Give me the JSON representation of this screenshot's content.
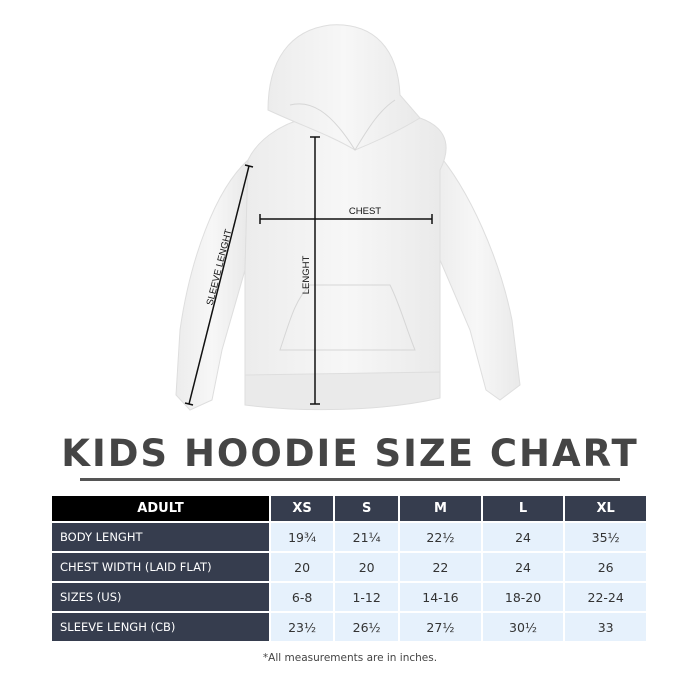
{
  "title": "KIDS HOODIE SIZE CHART",
  "diagram": {
    "sleeve_label": "SLEEVE LENGHT",
    "chest_label": "CHEST",
    "length_label": "LENGHT"
  },
  "table": {
    "corner": "ADULT",
    "sizes": [
      "XS",
      "S",
      "M",
      "L",
      "XL"
    ],
    "rows": [
      {
        "label": "BODY LENGHT",
        "values": [
          "19¾",
          "21¼",
          "22½",
          "24",
          "35½"
        ]
      },
      {
        "label": "CHEST WIDTH (LAID FLAT)",
        "values": [
          "20",
          "20",
          "22",
          "24",
          "26"
        ]
      },
      {
        "label": "SIZES (US)",
        "values": [
          "6-8",
          "1-12",
          "14-16",
          "18-20",
          "22-24"
        ]
      },
      {
        "label": "SLEEVE LENGH (CB)",
        "values": [
          "23½",
          "26½",
          "27½",
          "30½",
          "33"
        ]
      }
    ]
  },
  "note": "*All measurements are in inches.",
  "colors": {
    "header_dark": "#363d4e",
    "cell_light": "#e6f1fc",
    "title": "#454545"
  }
}
